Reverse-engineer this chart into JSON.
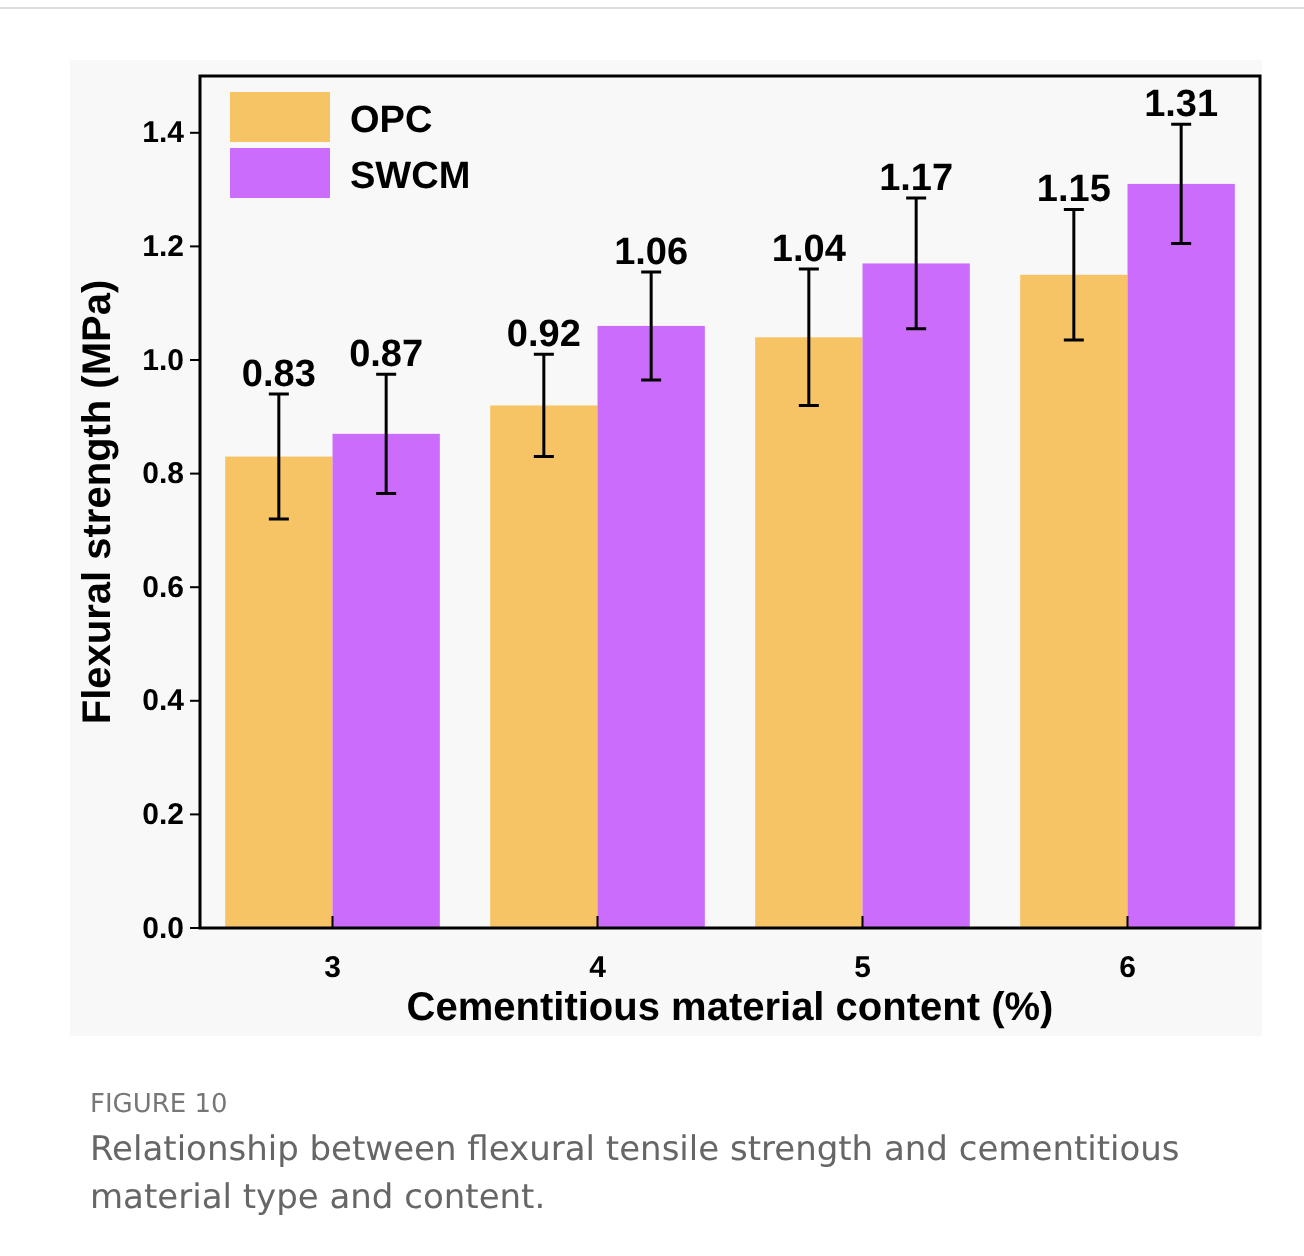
{
  "chart_data": {
    "type": "bar",
    "xlabel": "Cementitious material content (%)",
    "ylabel": "Flexural strength (MPa)",
    "categories": [
      "3",
      "4",
      "5",
      "6"
    ],
    "series": [
      {
        "name": "OPC",
        "color": "#f7c465",
        "values": [
          0.83,
          0.92,
          1.04,
          1.15
        ],
        "errors": [
          0.11,
          0.09,
          0.12,
          0.115
        ]
      },
      {
        "name": "SWCM",
        "color": "#cc6cfc",
        "values": [
          0.87,
          1.06,
          1.17,
          1.31
        ],
        "errors": [
          0.105,
          0.095,
          0.115,
          0.105
        ]
      }
    ],
    "ylim": [
      0,
      1.5
    ],
    "yticks": [
      {
        "value": 0,
        "label": "0.0"
      },
      0.2,
      0.4,
      0.6,
      0.8,
      {
        "value": 1,
        "label": "1.0"
      },
      1.2,
      1.4
    ],
    "data_labels": true,
    "legend": "top left",
    "grid": false,
    "annotations": [
      "FIGURE 10",
      "Relationship between flexural tensile strength and cementitious material type and content."
    ]
  }
}
